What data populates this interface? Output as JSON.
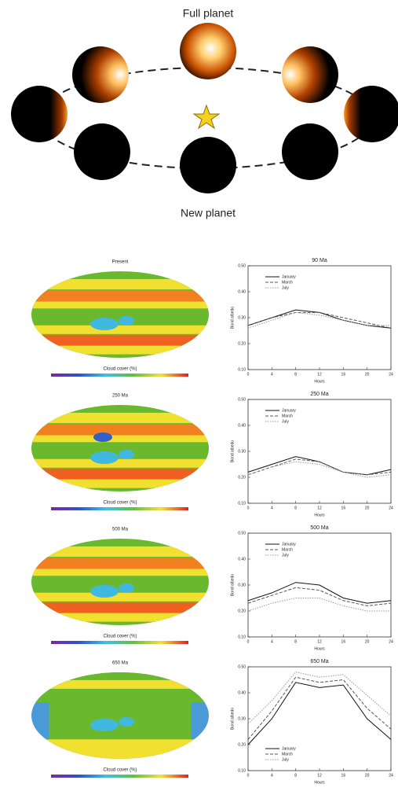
{
  "diagram": {
    "full_label": "Full planet",
    "new_label": "New planet"
  },
  "panels": [
    {
      "map_title": "Present",
      "colorbar_label": "Cloud cover (%)"
    },
    {
      "map_title": "250 Ma",
      "colorbar_label": "Cloud cover (%)"
    },
    {
      "map_title": "500 Ma",
      "colorbar_label": "Cloud cover (%)"
    },
    {
      "map_title": "650 Ma",
      "colorbar_label": "Cloud cover (%)"
    }
  ],
  "chart_data": [
    {
      "type": "line",
      "title": "90 Ma",
      "xlabel": "Hours",
      "ylabel": "Bond albedo",
      "x": [
        0,
        4,
        8,
        12,
        16,
        20,
        24
      ],
      "xlim": [
        0,
        24
      ],
      "xticks": [
        0,
        4,
        8,
        12,
        16,
        20,
        24
      ],
      "ylim": [
        0.1,
        0.5
      ],
      "yticks": [
        {
          "value": 0.1,
          "label": "0.10"
        },
        {
          "value": 0.2,
          "label": "0.20"
        },
        {
          "value": 0.3,
          "label": "0.30"
        },
        {
          "value": 0.4,
          "label": "0.40"
        },
        {
          "value": 0.5,
          "label": "0.50"
        }
      ],
      "series": [
        {
          "name": "January",
          "color": "#111111",
          "values": [
            0.27,
            0.3,
            0.33,
            0.32,
            0.29,
            0.27,
            0.26
          ]
        },
        {
          "name": "March",
          "color": "#555555",
          "values": [
            0.27,
            0.3,
            0.32,
            0.32,
            0.3,
            0.28,
            0.26
          ]
        },
        {
          "name": "July",
          "color": "#999999",
          "values": [
            0.26,
            0.29,
            0.32,
            0.31,
            0.29,
            0.27,
            0.27
          ]
        }
      ]
    },
    {
      "type": "line",
      "title": "250 Ma",
      "xlabel": "Hours",
      "ylabel": "Bond albedo",
      "x": [
        0,
        4,
        8,
        12,
        16,
        20,
        24
      ],
      "xlim": [
        0,
        24
      ],
      "xticks": [
        0,
        4,
        8,
        12,
        16,
        20,
        24
      ],
      "ylim": [
        0.1,
        0.5
      ],
      "yticks": [
        {
          "value": 0.1,
          "label": "0.10"
        },
        {
          "value": 0.2,
          "label": "0.20"
        },
        {
          "value": 0.3,
          "label": "0.30"
        },
        {
          "value": 0.4,
          "label": "0.40"
        },
        {
          "value": 0.5,
          "label": "0.50"
        }
      ],
      "series": [
        {
          "name": "January",
          "color": "#111111",
          "values": [
            0.22,
            0.25,
            0.28,
            0.26,
            0.22,
            0.21,
            0.23
          ]
        },
        {
          "name": "March",
          "color": "#555555",
          "values": [
            0.21,
            0.24,
            0.27,
            0.26,
            0.22,
            0.21,
            0.22
          ]
        },
        {
          "name": "July",
          "color": "#999999",
          "values": [
            0.21,
            0.24,
            0.26,
            0.25,
            0.22,
            0.2,
            0.21
          ]
        }
      ]
    },
    {
      "type": "line",
      "title": "500 Ma",
      "xlabel": "Hours",
      "ylabel": "Bond albedo",
      "x": [
        0,
        4,
        8,
        12,
        16,
        20,
        24
      ],
      "xlim": [
        0,
        24
      ],
      "xticks": [
        0,
        4,
        8,
        12,
        16,
        20,
        24
      ],
      "ylim": [
        0.1,
        0.5
      ],
      "yticks": [
        {
          "value": 0.1,
          "label": "0.10"
        },
        {
          "value": 0.2,
          "label": "0.20"
        },
        {
          "value": 0.3,
          "label": "0.30"
        },
        {
          "value": 0.4,
          "label": "0.40"
        },
        {
          "value": 0.5,
          "label": "0.50"
        }
      ],
      "series": [
        {
          "name": "January",
          "color": "#111111",
          "values": [
            0.24,
            0.27,
            0.31,
            0.3,
            0.25,
            0.23,
            0.24
          ]
        },
        {
          "name": "March",
          "color": "#555555",
          "values": [
            0.23,
            0.26,
            0.29,
            0.28,
            0.24,
            0.22,
            0.23
          ]
        },
        {
          "name": "July",
          "color": "#999999",
          "values": [
            0.2,
            0.23,
            0.25,
            0.25,
            0.22,
            0.2,
            0.2
          ]
        }
      ]
    },
    {
      "type": "line",
      "title": "650 Ma",
      "xlabel": "Hours",
      "ylabel": "Bond albedo",
      "x": [
        0,
        4,
        8,
        12,
        16,
        20,
        24
      ],
      "xlim": [
        0,
        24
      ],
      "xticks": [
        0,
        4,
        8,
        12,
        16,
        20,
        24
      ],
      "ylim": [
        0.1,
        0.5
      ],
      "yticks": [
        {
          "value": 0.1,
          "label": "0.10"
        },
        {
          "value": 0.2,
          "label": "0.20"
        },
        {
          "value": 0.3,
          "label": "0.30"
        },
        {
          "value": 0.4,
          "label": "0.40"
        },
        {
          "value": 0.5,
          "label": "0.50"
        }
      ],
      "series": [
        {
          "name": "January",
          "color": "#111111",
          "values": [
            0.2,
            0.3,
            0.44,
            0.42,
            0.43,
            0.3,
            0.22
          ]
        },
        {
          "name": "March",
          "color": "#555555",
          "values": [
            0.22,
            0.33,
            0.46,
            0.44,
            0.45,
            0.34,
            0.26
          ]
        },
        {
          "name": "July",
          "color": "#999999",
          "values": [
            0.28,
            0.37,
            0.48,
            0.46,
            0.47,
            0.39,
            0.31
          ]
        }
      ]
    }
  ]
}
